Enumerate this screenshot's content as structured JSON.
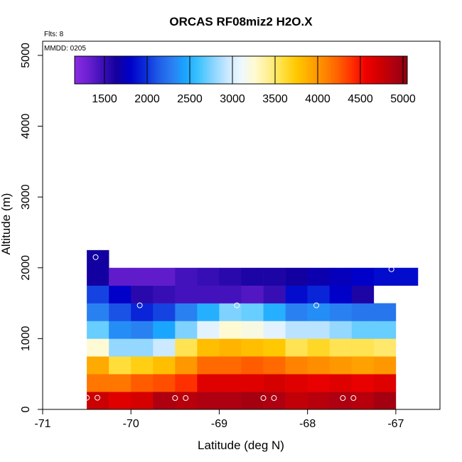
{
  "chart_data": {
    "type": "heatmap",
    "title": "ORCAS RF08miz2 H2O.X",
    "annotations": [
      "Flts: 8",
      "MMDD: 0205"
    ],
    "xlabel": "Latitude (deg N)",
    "ylabel": "Altitude (m)",
    "xlim": [
      -71,
      -66.5
    ],
    "ylim": [
      0,
      5200
    ],
    "x_ticks": [
      -71,
      -70,
      -69,
      -68,
      -67
    ],
    "y_ticks": [
      0,
      1000,
      2000,
      3000,
      4000,
      5000
    ],
    "colorbar": {
      "range": [
        1150,
        5050
      ],
      "ticks": [
        1500,
        2000,
        2500,
        3000,
        3500,
        4000,
        4500,
        5000
      ],
      "colors": [
        "#8a2be2",
        "#6a1fd0",
        "#3d10b8",
        "#14009e",
        "#0000c8",
        "#0a28d8",
        "#1e5ae8",
        "#2a7ef0",
        "#1aa6ff",
        "#40c4ff",
        "#8ad4ff",
        "#c8e8ff",
        "#eef8ff",
        "#fffad0",
        "#ffef90",
        "#ffe040",
        "#ffc800",
        "#ffa800",
        "#ff8800",
        "#ff6000",
        "#ff3000",
        "#f00000",
        "#d00000",
        "#b00010",
        "#900010"
      ]
    },
    "x_bins": [
      -70.5,
      -70.25,
      -70.0,
      -69.75,
      -69.5,
      -69.25,
      -69.0,
      -68.75,
      -68.5,
      -68.25,
      -68.0,
      -67.75,
      -67.5,
      -67.25,
      -67.0
    ],
    "alt_bins": [
      0,
      250,
      500,
      750,
      1000,
      1250,
      1500,
      1750,
      2000,
      2250
    ],
    "cells": [
      [
        -70.5,
        0,
        4750
      ],
      [
        -70.25,
        0,
        4650
      ],
      [
        -70.0,
        0,
        4700
      ],
      [
        -69.75,
        0,
        4900
      ],
      [
        -69.5,
        0,
        4850
      ],
      [
        -69.25,
        0,
        4900
      ],
      [
        -69.0,
        0,
        4900
      ],
      [
        -68.75,
        0,
        4950
      ],
      [
        -68.5,
        0,
        4900
      ],
      [
        -68.25,
        0,
        4800
      ],
      [
        -68.0,
        0,
        4850
      ],
      [
        -67.75,
        0,
        4900
      ],
      [
        -67.5,
        0,
        4850
      ],
      [
        -67.25,
        0,
        4950
      ],
      [
        -70.5,
        250,
        4150
      ],
      [
        -70.25,
        250,
        4150
      ],
      [
        -70.0,
        250,
        4250
      ],
      [
        -69.75,
        250,
        4300
      ],
      [
        -69.5,
        250,
        4400
      ],
      [
        -69.25,
        250,
        4650
      ],
      [
        -69.0,
        250,
        4650
      ],
      [
        -68.75,
        250,
        4650
      ],
      [
        -68.5,
        250,
        4700
      ],
      [
        -68.25,
        250,
        4650
      ],
      [
        -68.0,
        250,
        4600
      ],
      [
        -67.75,
        250,
        4650
      ],
      [
        -67.5,
        250,
        4600
      ],
      [
        -67.25,
        250,
        4650
      ],
      [
        -70.5,
        500,
        3900
      ],
      [
        -70.25,
        500,
        3600
      ],
      [
        -70.0,
        500,
        3700
      ],
      [
        -69.75,
        500,
        3800
      ],
      [
        -69.5,
        500,
        4000
      ],
      [
        -69.25,
        500,
        4200
      ],
      [
        -69.0,
        500,
        4200
      ],
      [
        -68.75,
        500,
        4250
      ],
      [
        -68.5,
        500,
        4200
      ],
      [
        -68.25,
        500,
        4100
      ],
      [
        -68.0,
        500,
        4050
      ],
      [
        -67.75,
        500,
        4000
      ],
      [
        -67.5,
        500,
        3950
      ],
      [
        -67.25,
        500,
        4000
      ],
      [
        -70.5,
        750,
        3250
      ],
      [
        -70.25,
        750,
        2800
      ],
      [
        -70.0,
        750,
        2800
      ],
      [
        -69.75,
        750,
        2950
      ],
      [
        -69.5,
        750,
        3550
      ],
      [
        -69.25,
        750,
        3800
      ],
      [
        -69.0,
        750,
        3850
      ],
      [
        -68.75,
        750,
        3800
      ],
      [
        -68.5,
        750,
        3750
      ],
      [
        -68.25,
        750,
        3550
      ],
      [
        -68.0,
        750,
        3650
      ],
      [
        -67.75,
        750,
        3550
      ],
      [
        -67.5,
        750,
        3550
      ],
      [
        -67.25,
        750,
        3500
      ],
      [
        -70.5,
        1000,
        2700
      ],
      [
        -70.25,
        1000,
        2350
      ],
      [
        -70.0,
        1000,
        2300
      ],
      [
        -69.75,
        1000,
        2450
      ],
      [
        -69.5,
        1000,
        2750
      ],
      [
        -69.25,
        1000,
        3050
      ],
      [
        -69.0,
        1000,
        3250
      ],
      [
        -68.75,
        1000,
        3200
      ],
      [
        -68.5,
        1000,
        3050
      ],
      [
        -68.25,
        1000,
        2900
      ],
      [
        -68.0,
        1000,
        2900
      ],
      [
        -67.75,
        1000,
        2800
      ],
      [
        -67.5,
        1000,
        2700
      ],
      [
        -67.25,
        1000,
        2700
      ],
      [
        -70.5,
        1250,
        2300
      ],
      [
        -70.25,
        1250,
        2100
      ],
      [
        -70.0,
        1250,
        1950
      ],
      [
        -69.75,
        1250,
        2050
      ],
      [
        -69.5,
        1250,
        2300
      ],
      [
        -69.25,
        1250,
        2500
      ],
      [
        -69.0,
        1250,
        2750
      ],
      [
        -68.75,
        1250,
        2700
      ],
      [
        -68.5,
        1250,
        2500
      ],
      [
        -68.25,
        1250,
        2300
      ],
      [
        -68.0,
        1250,
        2350
      ],
      [
        -67.75,
        1250,
        2300
      ],
      [
        -67.5,
        1250,
        2250
      ],
      [
        -67.25,
        1250,
        2250
      ],
      [
        -70.5,
        1500,
        2050
      ],
      [
        -70.25,
        1500,
        1800
      ],
      [
        -70.0,
        1500,
        1550
      ],
      [
        -69.75,
        1500,
        1500
      ],
      [
        -69.5,
        1500,
        1450
      ],
      [
        -69.25,
        1500,
        1450
      ],
      [
        -69.0,
        1500,
        1450
      ],
      [
        -68.75,
        1500,
        1400
      ],
      [
        -68.5,
        1500,
        1500
      ],
      [
        -68.25,
        1500,
        1850
      ],
      [
        -68.0,
        1500,
        1950
      ],
      [
        -67.75,
        1500,
        1800
      ],
      [
        -67.5,
        1500,
        1600
      ],
      [
        -70.5,
        1750,
        1650
      ],
      [
        -70.25,
        1750,
        1350
      ],
      [
        -70.0,
        1750,
        1350
      ],
      [
        -69.75,
        1750,
        1350
      ],
      [
        -69.5,
        1750,
        1450
      ],
      [
        -69.25,
        1750,
        1500
      ],
      [
        -69.0,
        1750,
        1550
      ],
      [
        -68.75,
        1750,
        1600
      ],
      [
        -68.5,
        1750,
        1600
      ],
      [
        -68.25,
        1750,
        1650
      ],
      [
        -68.0,
        1750,
        1700
      ],
      [
        -67.75,
        1750,
        1750
      ],
      [
        -67.5,
        1750,
        1800
      ],
      [
        -67.25,
        1750,
        1850
      ],
      [
        -67.0,
        1750,
        1850
      ],
      [
        -70.5,
        2000,
        1650
      ]
    ],
    "points": [
      [
        -70.5,
        165
      ],
      [
        -70.38,
        165
      ],
      [
        -69.5,
        160
      ],
      [
        -69.38,
        160
      ],
      [
        -68.5,
        160
      ],
      [
        -68.38,
        160
      ],
      [
        -67.6,
        160
      ],
      [
        -67.48,
        160
      ],
      [
        -70.4,
        2150
      ],
      [
        -69.9,
        1470
      ],
      [
        -68.8,
        1470
      ],
      [
        -67.9,
        1470
      ],
      [
        -67.05,
        1980
      ]
    ]
  }
}
